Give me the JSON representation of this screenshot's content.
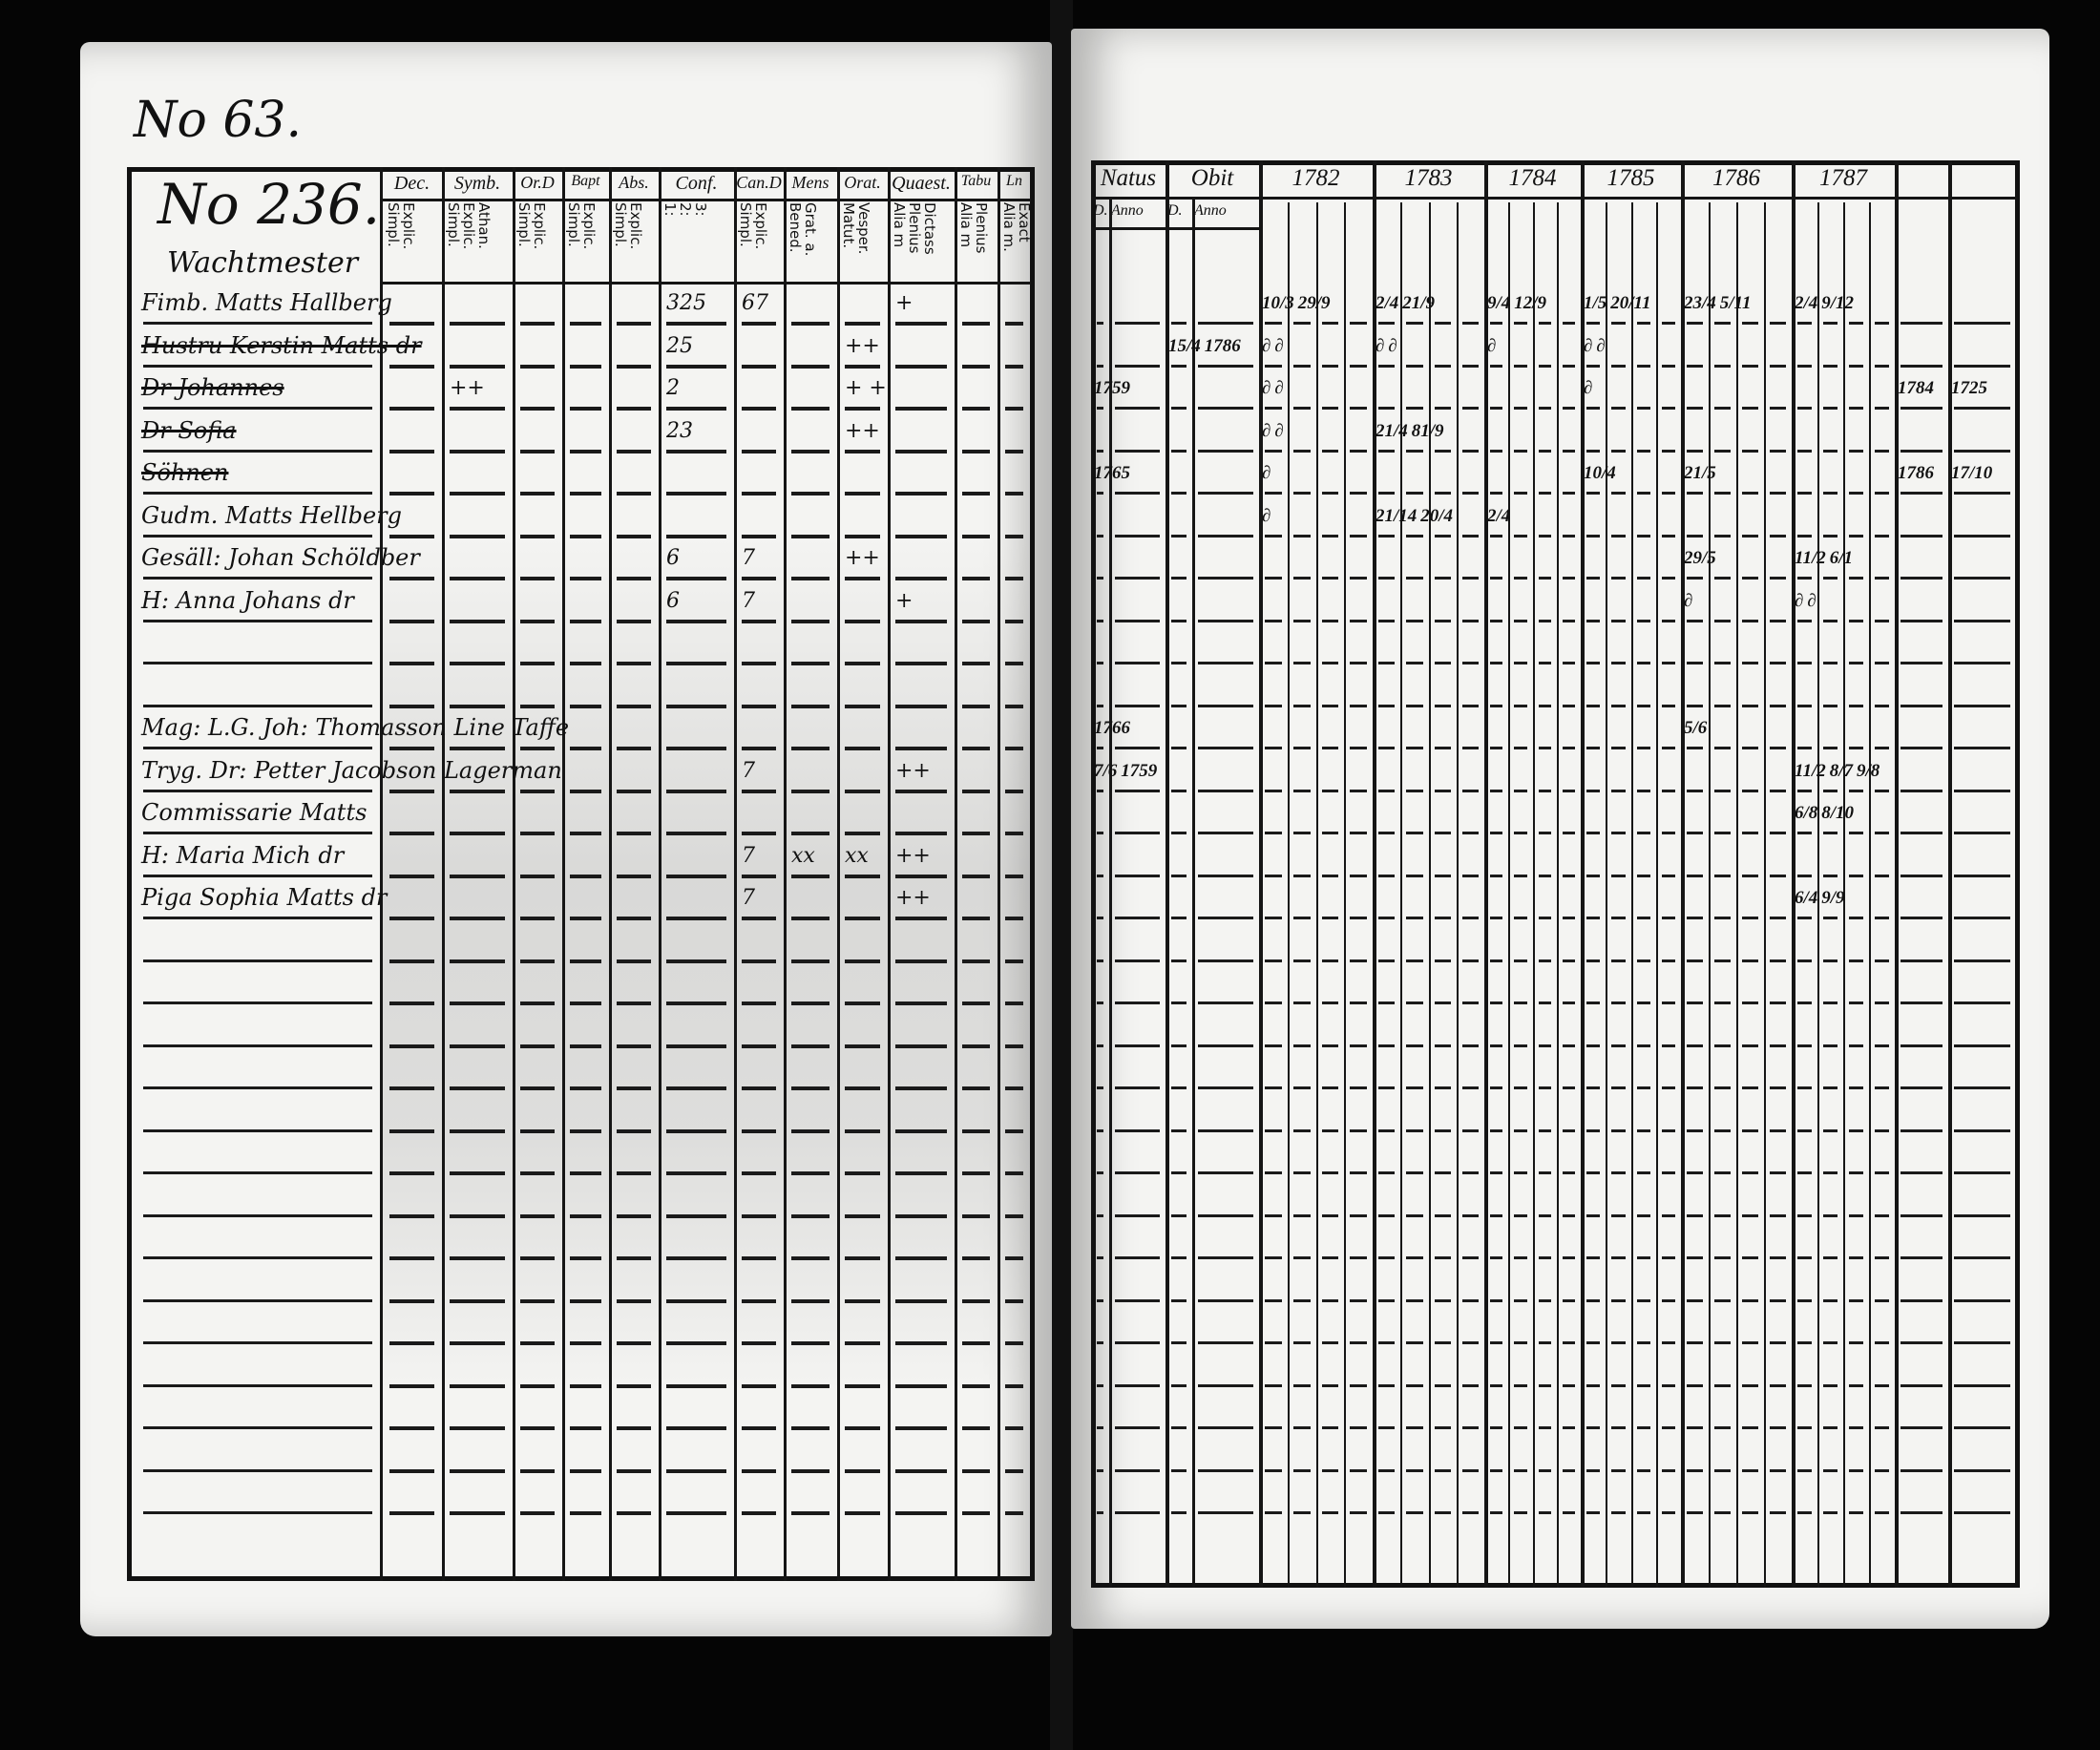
{
  "left": {
    "page_no": "No 63.",
    "household_no": "No 236.",
    "place": "Wachtmester",
    "columns": [
      {
        "head": "Dec.",
        "sub": "Explic.\nSimpl."
      },
      {
        "head": "Symb.",
        "sub": "Athan.\nExplic.\nSimpl."
      },
      {
        "head": "Or.D",
        "sub": "Explic.\nSimpl."
      },
      {
        "head": "Bapt",
        "sub": "Explic.\nSimpl."
      },
      {
        "head": "Abs.",
        "sub": "Explic.\nSimpl."
      },
      {
        "head": "Conf.",
        "sub": "3:\n2:\n1:"
      },
      {
        "head": "Can.D",
        "sub": "Explic.\nSimpl."
      },
      {
        "head": "Mens",
        "sub": "Grat. a.\nBened."
      },
      {
        "head": "Orat.",
        "sub": "Vesper.\nMatut."
      },
      {
        "head": "Quaest.",
        "sub": "Dictass\nPlenius\nAlia m"
      },
      {
        "head": "Tabu",
        "sub": "Plenius\nAlia m"
      },
      {
        "head": "Ln",
        "sub": "Exact\nAlia m."
      }
    ],
    "rows": [
      {
        "row": 0,
        "name": "Fimb. Matts Hallberg",
        "struck": false,
        "marks": [
          {
            "col": "Conf.",
            "text": "325"
          },
          {
            "col": "Can.D",
            "text": "67"
          },
          {
            "col": "Quaest.",
            "text": "+"
          }
        ]
      },
      {
        "row": 1,
        "name": "Hustru Kerstin Matts dr",
        "struck": true,
        "marks": [
          {
            "col": "Conf.",
            "text": "25"
          },
          {
            "col": "Orat.",
            "text": "++"
          }
        ]
      },
      {
        "row": 2,
        "name": "Dr Johannes",
        "struck": true,
        "marks": [
          {
            "col": "Symb.",
            "text": "++"
          },
          {
            "col": "Conf.",
            "text": "2"
          },
          {
            "col": "Orat.",
            "text": "+ +"
          }
        ]
      },
      {
        "row": 3,
        "name": "Dr Sofia",
        "struck": true,
        "marks": [
          {
            "col": "Conf.",
            "text": "23"
          },
          {
            "col": "Orat.",
            "text": "++"
          }
        ]
      },
      {
        "row": 4,
        "name": "Söhnen",
        "struck": true,
        "marks": []
      },
      {
        "row": 5,
        "name": "Gudm. Matts Hellberg",
        "struck": false,
        "marks": []
      },
      {
        "row": 6,
        "name": "Gesäll: Johan Schöldber",
        "struck": false,
        "marks": [
          {
            "col": "Conf.",
            "text": "6"
          },
          {
            "col": "Can.D",
            "text": "7"
          },
          {
            "col": "Orat.",
            "text": "++"
          }
        ]
      },
      {
        "row": 7,
        "name": "H: Anna Johans dr",
        "struck": false,
        "marks": [
          {
            "col": "Conf.",
            "text": "6"
          },
          {
            "col": "Can.D",
            "text": "7"
          },
          {
            "col": "Quaest.",
            "text": "+"
          }
        ]
      },
      {
        "row": 10,
        "name": "Mag: L.G. Joh: Thomasson Line Taffe",
        "struck": false,
        "marks": []
      },
      {
        "row": 11,
        "name": "Tryg. Dr: Petter Jacobson Lagerman",
        "struck": false,
        "marks": [
          {
            "col": "Can.D",
            "text": "7"
          },
          {
            "col": "Quaest.",
            "text": "++"
          }
        ]
      },
      {
        "row": 12,
        "name": "Commissarie Matts",
        "struck": false,
        "marks": []
      },
      {
        "row": 13,
        "name": "H: Maria Mich dr",
        "struck": false,
        "marks": [
          {
            "col": "Can.D",
            "text": "7"
          },
          {
            "col": "Mens",
            "text": "xx"
          },
          {
            "col": "Orat.",
            "text": "xx"
          },
          {
            "col": "Quaest.",
            "text": "++"
          }
        ]
      },
      {
        "row": 14,
        "name": "Piga Sophia Matts dr",
        "struck": false,
        "marks": [
          {
            "col": "Can.D",
            "text": "7"
          },
          {
            "col": "Quaest.",
            "text": "++"
          }
        ]
      }
    ]
  },
  "right": {
    "headers": [
      {
        "key": "natus",
        "head": "Natus",
        "subs": [
          "D.",
          "Anno"
        ]
      },
      {
        "key": "obit",
        "head": "Obit",
        "subs": [
          "D.",
          "Anno"
        ]
      },
      {
        "key": "1782",
        "head": "1782",
        "subs": []
      },
      {
        "key": "1783",
        "head": "1783",
        "subs": []
      },
      {
        "key": "1784",
        "head": "1784",
        "subs": []
      },
      {
        "key": "1785",
        "head": "1785",
        "subs": []
      },
      {
        "key": "1786",
        "head": "1786",
        "subs": []
      },
      {
        "key": "1787",
        "head": "1787",
        "subs": []
      },
      {
        "key": "extra1",
        "head": "",
        "subs": []
      },
      {
        "key": "extra2",
        "head": "",
        "subs": []
      }
    ],
    "entries": [
      {
        "row": 0,
        "col": "1782",
        "sub": 0,
        "text": "10/3"
      },
      {
        "row": 0,
        "col": "1782",
        "sub": 1,
        "text": "29/9"
      },
      {
        "row": 0,
        "col": "1783",
        "sub": 0,
        "text": "2/4"
      },
      {
        "row": 0,
        "col": "1783",
        "sub": 1,
        "text": "21/9"
      },
      {
        "row": 0,
        "col": "1784",
        "sub": 1,
        "text": "9/4"
      },
      {
        "row": 0,
        "col": "1784",
        "sub": 2,
        "text": "12/9"
      },
      {
        "row": 0,
        "col": "1785",
        "sub": 0,
        "text": "1/5"
      },
      {
        "row": 0,
        "col": "1785",
        "sub": 2,
        "text": "20/11"
      },
      {
        "row": 0,
        "col": "1786",
        "sub": 0,
        "text": "23/4"
      },
      {
        "row": 0,
        "col": "1786",
        "sub": 3,
        "text": "5/11"
      },
      {
        "row": 0,
        "col": "1787",
        "sub": 1,
        "text": "2/4"
      },
      {
        "row": 0,
        "col": "1787",
        "sub": 3,
        "text": "9/12"
      },
      {
        "row": 1,
        "col": "obit",
        "sub": 0,
        "text": "15/4"
      },
      {
        "row": 1,
        "col": "obit",
        "sub": 1,
        "text": "1786"
      },
      {
        "row": 1,
        "col": "1782",
        "sub": 0,
        "text": "∂"
      },
      {
        "row": 1,
        "col": "1782",
        "sub": 1,
        "text": "∂"
      },
      {
        "row": 1,
        "col": "1783",
        "sub": 0,
        "text": "∂"
      },
      {
        "row": 1,
        "col": "1783",
        "sub": 1,
        "text": "∂"
      },
      {
        "row": 1,
        "col": "1784",
        "sub": 2,
        "text": "∂"
      },
      {
        "row": 1,
        "col": "1785",
        "sub": 0,
        "text": "∂"
      },
      {
        "row": 1,
        "col": "1785",
        "sub": 2,
        "text": "∂"
      },
      {
        "row": 2,
        "col": "natus",
        "sub": 1,
        "text": "1759"
      },
      {
        "row": 2,
        "col": "1782",
        "sub": 0,
        "text": "∂"
      },
      {
        "row": 2,
        "col": "1782",
        "sub": 1,
        "text": "∂"
      },
      {
        "row": 2,
        "col": "1785",
        "sub": 0,
        "text": "∂"
      },
      {
        "row": 2,
        "col": "extra1",
        "sub": 0,
        "text": "1784"
      },
      {
        "row": 2,
        "col": "extra2",
        "sub": 0,
        "text": "1725"
      },
      {
        "row": 3,
        "col": "1782",
        "sub": 0,
        "text": "∂"
      },
      {
        "row": 3,
        "col": "1782",
        "sub": 1,
        "text": "∂"
      },
      {
        "row": 3,
        "col": "1783",
        "sub": 0,
        "text": "21/4"
      },
      {
        "row": 3,
        "col": "1783",
        "sub": 1,
        "text": "81/9"
      },
      {
        "row": 4,
        "col": "natus",
        "sub": 1,
        "text": "1765"
      },
      {
        "row": 4,
        "col": "1782",
        "sub": 0,
        "text": "∂"
      },
      {
        "row": 4,
        "col": "1785",
        "sub": 2,
        "text": "10/4"
      },
      {
        "row": 4,
        "col": "1786",
        "sub": 0,
        "text": "21/5"
      },
      {
        "row": 4,
        "col": "extra1",
        "sub": 0,
        "text": "1786"
      },
      {
        "row": 4,
        "col": "extra2",
        "sub": 0,
        "text": "17/10"
      },
      {
        "row": 5,
        "col": "1782",
        "sub": 0,
        "text": "∂"
      },
      {
        "row": 5,
        "col": "1783",
        "sub": 0,
        "text": "21/14"
      },
      {
        "row": 5,
        "col": "1783",
        "sub": 1,
        "text": "20/4"
      },
      {
        "row": 5,
        "col": "1784",
        "sub": 1,
        "text": "2/4"
      },
      {
        "row": 6,
        "col": "1786",
        "sub": 0,
        "text": "29/5"
      },
      {
        "row": 6,
        "col": "1787",
        "sub": 0,
        "text": "11/2"
      },
      {
        "row": 6,
        "col": "1787",
        "sub": 3,
        "text": "6/1"
      },
      {
        "row": 7,
        "col": "1786",
        "sub": 0,
        "text": "∂"
      },
      {
        "row": 7,
        "col": "1787",
        "sub": 0,
        "text": "∂"
      },
      {
        "row": 7,
        "col": "1787",
        "sub": 3,
        "text": "∂"
      },
      {
        "row": 10,
        "col": "natus",
        "sub": 1,
        "text": "1766"
      },
      {
        "row": 10,
        "col": "1786",
        "sub": 0,
        "text": "5/6"
      },
      {
        "row": 11,
        "col": "natus",
        "sub": 0,
        "text": "7/6"
      },
      {
        "row": 11,
        "col": "natus",
        "sub": 1,
        "text": "1759"
      },
      {
        "row": 11,
        "col": "1787",
        "sub": 0,
        "text": "11/2"
      },
      {
        "row": 11,
        "col": "1787",
        "sub": 1,
        "text": "8/7"
      },
      {
        "row": 11,
        "col": "1787",
        "sub": 2,
        "text": "9/8"
      },
      {
        "row": 12,
        "col": "1787",
        "sub": 1,
        "text": "6/8"
      },
      {
        "row": 12,
        "col": "1787",
        "sub": 2,
        "text": "8/10"
      },
      {
        "row": 14,
        "col": "1787",
        "sub": 1,
        "text": "6/4"
      },
      {
        "row": 14,
        "col": "1787",
        "sub": 2,
        "text": "9/9"
      }
    ]
  }
}
